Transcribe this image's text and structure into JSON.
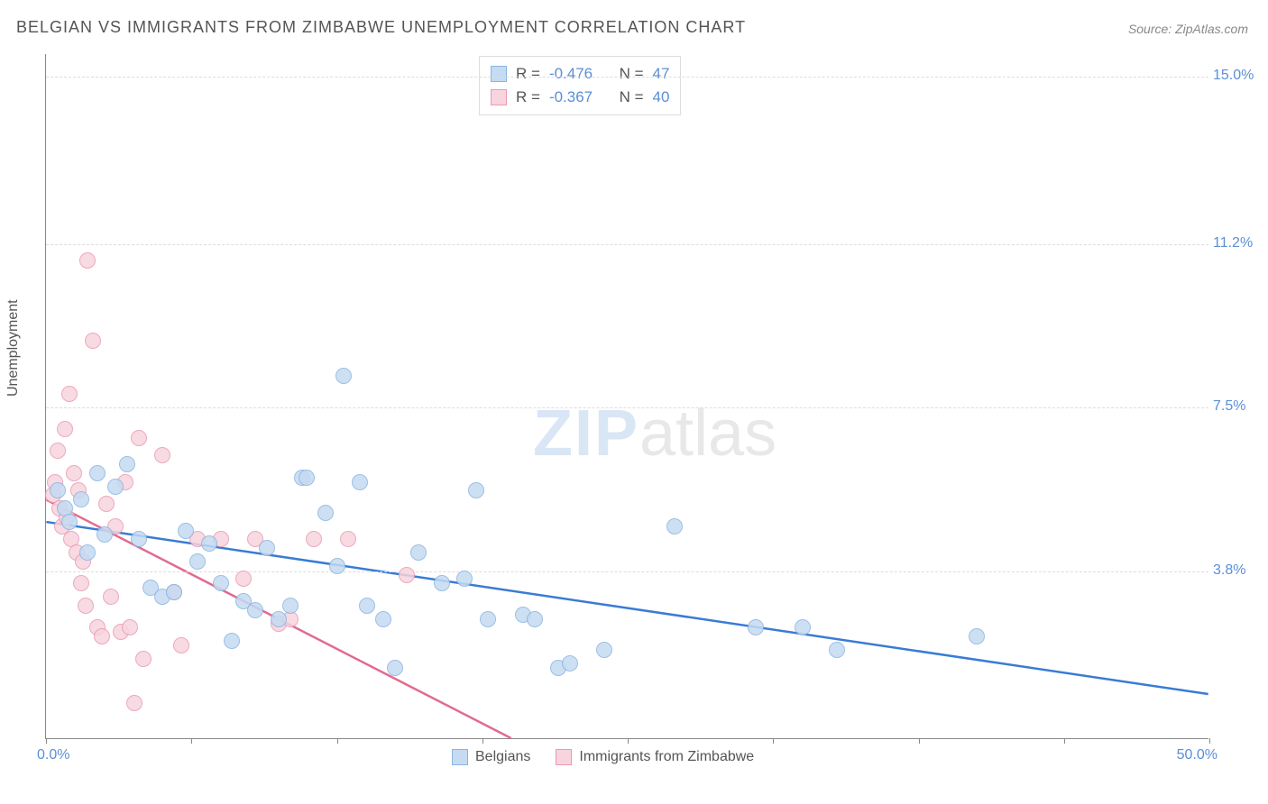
{
  "title": "BELGIAN VS IMMIGRANTS FROM ZIMBABWE UNEMPLOYMENT CORRELATION CHART",
  "source": "Source: ZipAtlas.com",
  "ylabel": "Unemployment",
  "watermark_zip": "ZIP",
  "watermark_atlas": "atlas",
  "chart": {
    "type": "scatter",
    "xlim": [
      0,
      50
    ],
    "ylim": [
      0,
      15.5
    ],
    "x_ticks": [
      0,
      6.25,
      12.5,
      18.75,
      25,
      31.25,
      37.5,
      43.75,
      50
    ],
    "x_tick_labels": {
      "first": "0.0%",
      "last": "50.0%"
    },
    "y_gridlines": [
      3.8,
      7.5,
      11.2,
      15.0
    ],
    "y_tick_labels": [
      "3.8%",
      "7.5%",
      "11.2%",
      "15.0%"
    ],
    "background_color": "#ffffff",
    "grid_color": "#dddddd",
    "axis_color": "#888888",
    "marker_radius": 9,
    "series": [
      {
        "name": "Belgians",
        "label": "Belgians",
        "fill_color": "#c5dbf2",
        "stroke_color": "#8bb4e0",
        "line_color": "#3a7bd5",
        "R": "-0.476",
        "N": "47",
        "regression": {
          "x1": 0,
          "y1": 4.9,
          "x2": 50,
          "y2": 1.0
        },
        "points": [
          [
            0.5,
            5.6
          ],
          [
            0.8,
            5.2
          ],
          [
            1.0,
            4.9
          ],
          [
            1.5,
            5.4
          ],
          [
            1.8,
            4.2
          ],
          [
            2.2,
            6.0
          ],
          [
            2.5,
            4.6
          ],
          [
            3.0,
            5.7
          ],
          [
            3.5,
            6.2
          ],
          [
            4.0,
            4.5
          ],
          [
            4.5,
            3.4
          ],
          [
            5.0,
            3.2
          ],
          [
            5.5,
            3.3
          ],
          [
            6.0,
            4.7
          ],
          [
            6.5,
            4.0
          ],
          [
            7.0,
            4.4
          ],
          [
            7.5,
            3.5
          ],
          [
            8.0,
            2.2
          ],
          [
            8.5,
            3.1
          ],
          [
            9.0,
            2.9
          ],
          [
            9.5,
            4.3
          ],
          [
            10.0,
            2.7
          ],
          [
            10.5,
            3.0
          ],
          [
            11.0,
            5.9
          ],
          [
            11.2,
            5.9
          ],
          [
            12.0,
            5.1
          ],
          [
            12.5,
            3.9
          ],
          [
            12.8,
            8.2
          ],
          [
            13.5,
            5.8
          ],
          [
            13.8,
            3.0
          ],
          [
            14.5,
            2.7
          ],
          [
            15.0,
            1.6
          ],
          [
            16.0,
            4.2
          ],
          [
            17.0,
            3.5
          ],
          [
            18.0,
            3.6
          ],
          [
            18.5,
            5.6
          ],
          [
            19.0,
            2.7
          ],
          [
            20.5,
            2.8
          ],
          [
            21.0,
            2.7
          ],
          [
            22.0,
            1.6
          ],
          [
            22.5,
            1.7
          ],
          [
            24.0,
            2.0
          ],
          [
            27.0,
            4.8
          ],
          [
            30.5,
            2.5
          ],
          [
            32.5,
            2.5
          ],
          [
            34.0,
            2.0
          ],
          [
            40.0,
            2.3
          ]
        ]
      },
      {
        "name": "Immigrants from Zimbabwe",
        "label": "Immigrants from Zimbabwe",
        "fill_color": "#f7d4de",
        "stroke_color": "#e99bb3",
        "line_color": "#e06b8f",
        "R": "-0.367",
        "N": "40",
        "regression": {
          "x1": 0,
          "y1": 5.4,
          "x2": 20,
          "y2": 0.0
        },
        "points": [
          [
            0.3,
            5.5
          ],
          [
            0.4,
            5.8
          ],
          [
            0.5,
            6.5
          ],
          [
            0.6,
            5.2
          ],
          [
            0.7,
            4.8
          ],
          [
            0.8,
            7.0
          ],
          [
            0.9,
            5.0
          ],
          [
            1.0,
            7.8
          ],
          [
            1.1,
            4.5
          ],
          [
            1.2,
            6.0
          ],
          [
            1.3,
            4.2
          ],
          [
            1.4,
            5.6
          ],
          [
            1.5,
            3.5
          ],
          [
            1.6,
            4.0
          ],
          [
            1.7,
            3.0
          ],
          [
            1.8,
            10.8
          ],
          [
            2.0,
            9.0
          ],
          [
            2.2,
            2.5
          ],
          [
            2.4,
            2.3
          ],
          [
            2.6,
            5.3
          ],
          [
            2.8,
            3.2
          ],
          [
            3.0,
            4.8
          ],
          [
            3.2,
            2.4
          ],
          [
            3.4,
            5.8
          ],
          [
            3.6,
            2.5
          ],
          [
            3.8,
            0.8
          ],
          [
            4.0,
            6.8
          ],
          [
            4.2,
            1.8
          ],
          [
            5.0,
            6.4
          ],
          [
            5.5,
            3.3
          ],
          [
            5.8,
            2.1
          ],
          [
            6.5,
            4.5
          ],
          [
            7.5,
            4.5
          ],
          [
            8.5,
            3.6
          ],
          [
            9.0,
            4.5
          ],
          [
            10.0,
            2.6
          ],
          [
            10.5,
            2.7
          ],
          [
            11.5,
            4.5
          ],
          [
            13.0,
            4.5
          ],
          [
            15.5,
            3.7
          ]
        ]
      }
    ]
  },
  "legend_top": {
    "r_label": "R =",
    "n_label": "N ="
  }
}
